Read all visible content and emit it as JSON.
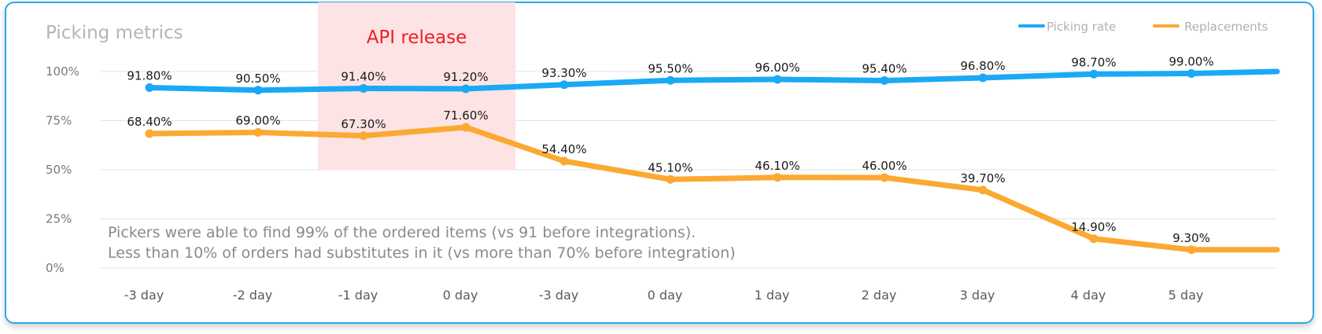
{
  "chart_data": {
    "type": "line",
    "title": "Picking metrics",
    "categories": [
      "-3 day",
      "-2 day",
      "-1 day",
      "0 day",
      "-3 day",
      "0 day",
      "1 day",
      "2 day",
      "3 day",
      "4 day",
      "5 day"
    ],
    "series": [
      {
        "name": "Picking rate",
        "color": "#1ba9f5",
        "values": [
          91.8,
          90.5,
          91.4,
          91.2,
          93.3,
          95.5,
          96.0,
          95.4,
          96.8,
          98.7,
          99.0
        ],
        "labels": [
          "91.80%",
          "90.50%",
          "91.40%",
          "91.20%",
          "93.30%",
          "95.50%",
          "96.00%",
          "95.40%",
          "96.80%",
          "98.70%",
          "99.00%"
        ]
      },
      {
        "name": "Replacements",
        "color": "#fba932",
        "values": [
          68.4,
          69.0,
          67.3,
          71.6,
          54.4,
          45.1,
          46.1,
          46.0,
          39.7,
          14.9,
          9.3
        ],
        "labels": [
          "68.40%",
          "69.00%",
          "67.30%",
          "71.60%",
          "54.40%",
          "45.10%",
          "46.10%",
          "46.00%",
          "39.70%",
          "14.90%",
          "9.30%"
        ]
      }
    ],
    "y_ticks": [
      "100%",
      "75%",
      "50%",
      "25%",
      "0%"
    ],
    "ylim": [
      0,
      100
    ],
    "grid": true,
    "legend_position": "top-right",
    "highlight_band": {
      "label": "API release",
      "color": "#fde3e4",
      "label_color": "#ee1c24",
      "from_category": "-1 day",
      "to_category": "0 day"
    },
    "annotation_lines": [
      "Pickers were able to find 99% of the ordered items (vs 91 before integrations).",
      "Less than 10% of orders had substitutes in it (vs more than 70% before integration)"
    ]
  }
}
